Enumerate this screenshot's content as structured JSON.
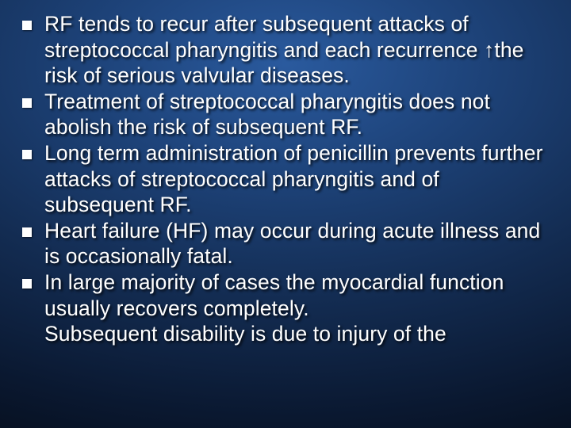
{
  "slide": {
    "background_gradient": [
      "#2a5a9e",
      "#1d4278",
      "#132c52",
      "#0a1830",
      "#030810"
    ],
    "text_color": "#ffffff",
    "bullet_color": "#ffffff",
    "font_family": "Arial",
    "font_size_pt": 20,
    "bullets": [
      "RF tends to recur after subsequent attacks of streptococcal pharyngitis and each recurrence ↑the risk of serious valvular diseases.",
      "Treatment of streptococcal pharyngitis does not abolish the risk of subsequent RF.",
      "Long term administration of penicillin prevents further attacks of streptococcal pharyngitis and of subsequent RF.",
      "Heart failure (HF) may occur during acute illness and is occasionally fatal.",
      "In large majority of cases the myocardial function usually recovers completely."
    ],
    "partial_line": "Subsequent disability is due to injury of the"
  }
}
